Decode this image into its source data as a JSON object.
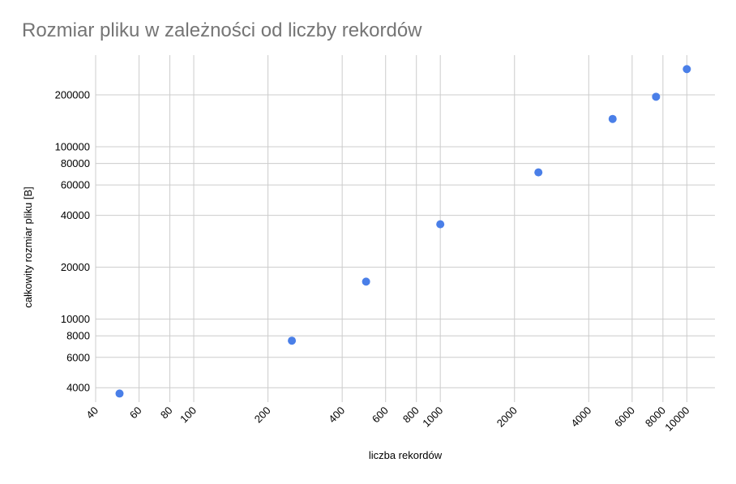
{
  "chart_data": {
    "type": "scatter",
    "title": "Rozmiar pliku w zależności od liczby rekordów",
    "xlabel": "liczba rekordów",
    "ylabel": "całkowity rozmiar pliku [B]",
    "x_scale": "log",
    "y_scale": "log",
    "xlim": [
      40,
      13000
    ],
    "ylim": [
      3300,
      340000
    ],
    "x_ticks": [
      40,
      60,
      80,
      100,
      200,
      400,
      600,
      800,
      1000,
      2000,
      4000,
      6000,
      8000,
      10000
    ],
    "y_ticks": [
      4000,
      6000,
      8000,
      10000,
      20000,
      40000,
      60000,
      80000,
      100000,
      200000
    ],
    "grid": true,
    "legend": "none",
    "series": [
      {
        "color": "#4a7fe8",
        "points": [
          {
            "x": 50,
            "y": 3700
          },
          {
            "x": 250,
            "y": 7500
          },
          {
            "x": 500,
            "y": 16500
          },
          {
            "x": 1000,
            "y": 35500
          },
          {
            "x": 2500,
            "y": 71000
          },
          {
            "x": 5000,
            "y": 145000
          },
          {
            "x": 7500,
            "y": 195000
          },
          {
            "x": 10000,
            "y": 282000
          }
        ]
      }
    ]
  }
}
